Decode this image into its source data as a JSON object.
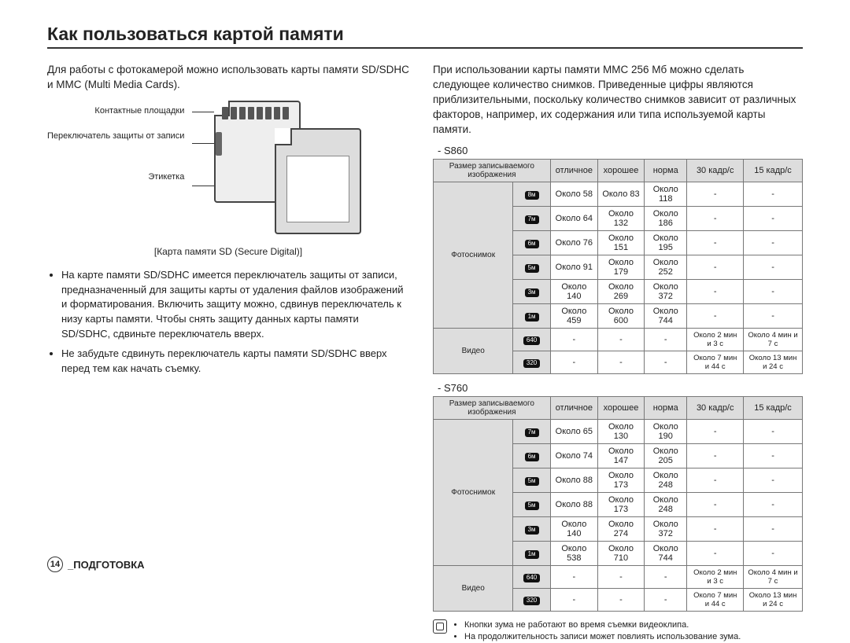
{
  "title": "Как пользоваться картой памяти",
  "left": {
    "intro": "Для работы с фотокамерой можно использовать карты памяти SD/SDHC и MMC (Multi Media Cards).",
    "labels": {
      "contacts": "Контактные площадки",
      "switch": "Переключатель защиты от записи",
      "label": "Этикетка"
    },
    "caption": "[Карта памяти SD (Secure Digital)]",
    "bullets": [
      "На карте памяти SD/SDHC имеется переключатель защиты от записи, предназначенный для защиты карты от удаления файлов изображений и форматирования. Включить защиту можно, сдвинув переключатель к низу карты памяти. Чтобы снять защиту данных карты памяти SD/SDHC, сдвиньте переключатель вверх.",
      "Не забудьте сдвинуть переключатель карты памяти SD/SDHC вверх перед тем как начать съемку."
    ]
  },
  "right": {
    "intro": "При использовании карты памяти MMC 256 Мб можно сделать следующее количество снимков. Приведенные цифры являются приблизительными, поскольку количество снимков зависит от различных факторов, например, их содержания или типа используемой карты памяти.",
    "headers": {
      "size": "Размер записываемого изображения",
      "excellent": "отличное",
      "good": "хорошее",
      "norm": "норма",
      "fps30": "30 кадр/с",
      "fps15": "15 кадр/с"
    },
    "rowLabels": {
      "photo": "Фотоснимок",
      "video": "Видео"
    },
    "s860": {
      "label": "- S860",
      "photoIcons": [
        "8м",
        "7м",
        "6м",
        "5м",
        "3м",
        "1м"
      ],
      "photoRows": [
        [
          "Около 58",
          "Около 83",
          "Около 118",
          "-",
          "-"
        ],
        [
          "Около 64",
          "Около 132",
          "Около 186",
          "-",
          "-"
        ],
        [
          "Около 76",
          "Около 151",
          "Около 195",
          "-",
          "-"
        ],
        [
          "Около 91",
          "Около 179",
          "Около 252",
          "-",
          "-"
        ],
        [
          "Около 140",
          "Около 269",
          "Около 372",
          "-",
          "-"
        ],
        [
          "Около 459",
          "Около 600",
          "Около 744",
          "-",
          "-"
        ]
      ],
      "videoIcons": [
        "640",
        "320"
      ],
      "videoRows": [
        [
          "-",
          "-",
          "-",
          "Около 2 мин и 3 с",
          "Около 4 мин и 7 с"
        ],
        [
          "-",
          "-",
          "-",
          "Около 7 мин и 44 с",
          "Около 13 мин и 24 с"
        ]
      ]
    },
    "s760": {
      "label": "- S760",
      "photoIcons": [
        "7м",
        "6м",
        "5м",
        "5м",
        "3м",
        "1м"
      ],
      "photoRows": [
        [
          "Около 65",
          "Около 130",
          "Около 190",
          "-",
          "-"
        ],
        [
          "Около 74",
          "Около 147",
          "Около 205",
          "-",
          "-"
        ],
        [
          "Около 88",
          "Около 173",
          "Около 248",
          "-",
          "-"
        ],
        [
          "Около 88",
          "Около 173",
          "Около 248",
          "-",
          "-"
        ],
        [
          "Около 140",
          "Около 274",
          "Около 372",
          "-",
          "-"
        ],
        [
          "Около 538",
          "Около 710",
          "Около 744",
          "-",
          "-"
        ]
      ],
      "videoIcons": [
        "640",
        "320"
      ],
      "videoRows": [
        [
          "-",
          "-",
          "-",
          "Около 2 мин и 3 с",
          "Около 4 мин и 7 с"
        ],
        [
          "-",
          "-",
          "-",
          "Около 7 мин и 44 с",
          "Около 13 мин и 24 с"
        ]
      ]
    },
    "footnotes": [
      "Кнопки зума не работают во время съемки видеоклипа.",
      "На продолжительность записи может повлиять использование зума."
    ]
  },
  "footer": {
    "page": "14",
    "section": "_ПОДГОТОВКА"
  }
}
